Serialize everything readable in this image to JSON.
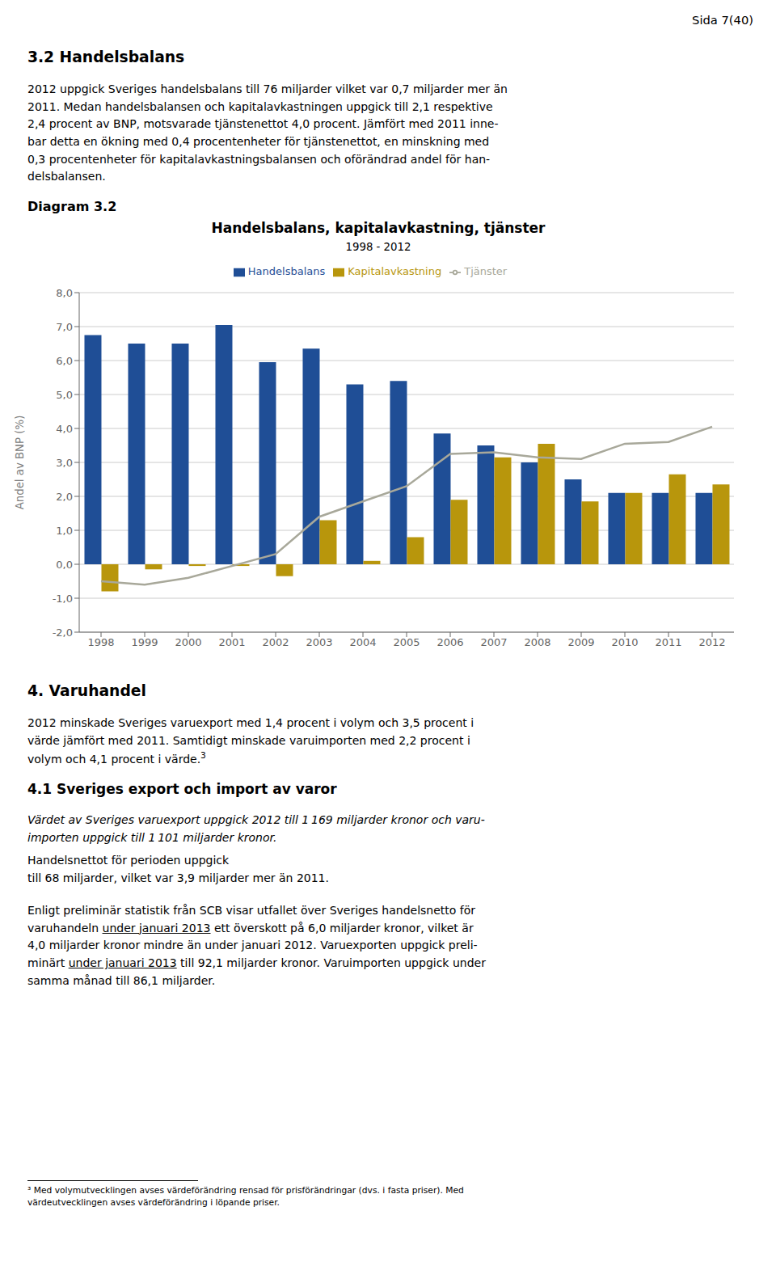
{
  "chart_data": {
    "type": "bar",
    "title": "Handelsbalans, kapitalavkastning, tjänster",
    "subtitle": "1998 - 2012",
    "ylabel": "Andel av BNP (%)",
    "categories": [
      "1998",
      "1999",
      "2000",
      "2001",
      "2002",
      "2003",
      "2004",
      "2005",
      "2006",
      "2007",
      "2008",
      "2009",
      "2010",
      "2011",
      "2012"
    ],
    "series": [
      {
        "name": "Handelsbalans",
        "type": "bar",
        "color": "#1F4E96",
        "values": [
          6.75,
          6.5,
          6.5,
          7.05,
          5.95,
          6.35,
          5.3,
          5.4,
          3.85,
          3.5,
          3.0,
          2.5,
          2.1,
          2.1,
          2.1
        ]
      },
      {
        "name": "Kapitalavkastning",
        "type": "bar",
        "color": "#B8960C",
        "values": [
          -0.8,
          -0.15,
          -0.05,
          -0.05,
          -0.35,
          1.3,
          0.1,
          0.8,
          1.9,
          3.15,
          3.55,
          1.85,
          2.1,
          2.65,
          2.35
        ]
      },
      {
        "name": "Tjänster",
        "type": "line",
        "color": "#A8A89A",
        "values": [
          -0.5,
          -0.6,
          -0.4,
          -0.05,
          0.3,
          1.4,
          1.85,
          2.3,
          3.25,
          3.3,
          3.15,
          3.1,
          3.55,
          3.6,
          4.05
        ]
      }
    ],
    "ylim": [
      -2.0,
      8.0
    ],
    "yticks": [
      {
        "value": -2.0,
        "label": "-2,0"
      },
      {
        "value": -1.0,
        "label": "-1,0"
      },
      {
        "value": 0.0,
        "label": "0,0"
      },
      {
        "value": 1.0,
        "label": "1,0"
      },
      {
        "value": 2.0,
        "label": "2,0"
      },
      {
        "value": 3.0,
        "label": "3,0"
      },
      {
        "value": 4.0,
        "label": "4,0"
      },
      {
        "value": 5.0,
        "label": "5,0"
      },
      {
        "value": 6.0,
        "label": "6,0"
      },
      {
        "value": 7.0,
        "label": "7,0"
      },
      {
        "value": 8.0,
        "label": "8,0"
      }
    ],
    "grid": true,
    "legend": "top",
    "annotations": [
      "Sida 7(40)",
      "3.2 Handelsbalans",
      "2012 uppgick Sveriges handelsbalans till 76 miljarder vilket var 0,7 miljarder mer än\n2011. Medan handelsbalansen och kapitalavkastningen uppgick till 2,1 respektive\n2,4 procent av BNP, motsvarade tjänstenettot 4,0 procent. Jämfört med 2011 inne-\nbar detta en ökning med 0,4 procentenheter för tjänstenettot, en minskning med\n0,3 procentenheter för kapitalavkastningsbalansen och oförändrad andel för han-\ndelsbalansen.",
      "Diagram 3.2",
      "4. Varuhandel",
      "2012 minskade Sveriges varuexport med 1,4 procent i volym och 3,5 procent i\nvärde jämfört med 2011. Samtidigt minskade varuimporten med 2,2 procent i\nvolym och 4,1 procent i värde.",
      "3",
      "4.1 Sveriges export och import av varor",
      "Värdet av Sveriges varuexport uppgick 2012 till 1 169 miljarder kronor och varu-\nimporten uppgick till 1 101 miljarder kronor.",
      "Handelsnettot för perioden uppgick\ntill 68 miljarder, vilket var 3,9 miljarder mer än 2011.",
      "Enligt preliminär statistik från SCB visar utfallet över Sveriges handelsnetto för",
      "varuhandeln ",
      "under januari 2013",
      " ett överskott på 6,0 miljarder kronor, vilket är",
      "4,0 miljarder kronor mindre än under januari 2012. Varuexporten uppgick preli-",
      "minärt ",
      "under januari 2013",
      " till 92,1 miljarder kronor. Varuimporten uppgick under",
      "samma månad till 86,1 miljarder.",
      "³ Med volymutvecklingen avses värdeförändring rensad för prisförändringar (dvs. i fasta priser). Med\nvärdeutvecklingen avses värdeförändring i löpande priser."
    ]
  }
}
